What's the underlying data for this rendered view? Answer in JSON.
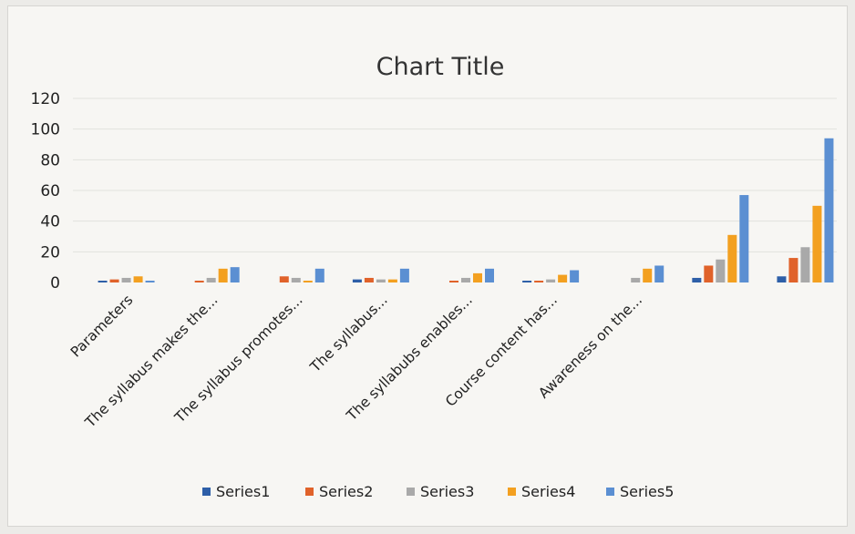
{
  "chart_data": {
    "type": "bar",
    "title": "Chart Title",
    "xlabel": "",
    "ylabel": "",
    "ylim": [
      0,
      120
    ],
    "ticks": [
      0,
      20,
      40,
      60,
      80,
      100,
      120
    ],
    "grid": true,
    "legend": "bottom",
    "categories": [
      "Parameters",
      "The syllabus makes the...",
      "The syllabus promotes...",
      "The syllabus...",
      "The syllabubs enables...",
      "Course content has...",
      "Awareness on the...",
      "",
      ""
    ],
    "series": [
      {
        "name": "Series1",
        "color": "#2e5fa8",
        "values": [
          1,
          0,
          0,
          2,
          0,
          1,
          0,
          3,
          4
        ]
      },
      {
        "name": "Series2",
        "color": "#e0622a",
        "values": [
          2,
          1,
          4,
          3,
          1,
          1,
          0,
          11,
          16
        ]
      },
      {
        "name": "Series3",
        "color": "#a9a9a9",
        "values": [
          3,
          3,
          3,
          2,
          3,
          2,
          3,
          15,
          23
        ]
      },
      {
        "name": "Series4",
        "color": "#f3a020",
        "values": [
          4,
          9,
          1,
          2,
          6,
          5,
          9,
          31,
          50
        ]
      },
      {
        "name": "Series5",
        "color": "#5b8fd2",
        "values": [
          1,
          10,
          9,
          9,
          9,
          8,
          11,
          57,
          94
        ]
      }
    ]
  }
}
